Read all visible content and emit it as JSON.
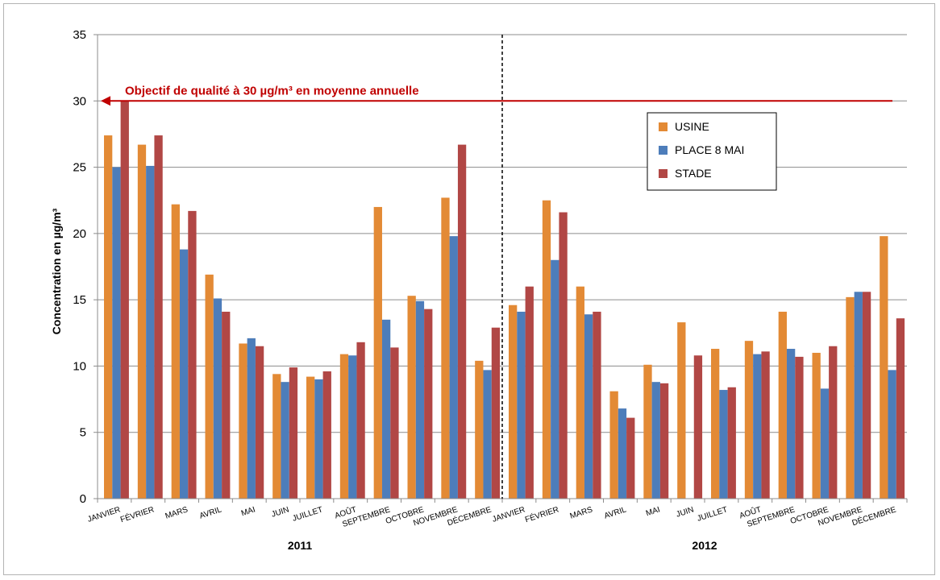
{
  "chart_data": {
    "type": "bar",
    "ylabel": "Concentration en µg/m³",
    "ylim": [
      0,
      35
    ],
    "yticks": [
      0,
      5,
      10,
      15,
      20,
      25,
      30,
      35
    ],
    "grid": true,
    "legend_position": "top-right",
    "categories": [
      "JANVIER",
      "FÉVRIER",
      "MARS",
      "AVRIL",
      "MAI",
      "JUIN",
      "JUILLET",
      "AOÛT",
      "SEPTEMBRE",
      "OCTOBRE",
      "NOVEMBRE",
      "DÉCEMBRE",
      "JANVIER",
      "FÉVRIER",
      "MARS",
      "AVRIL",
      "MAI",
      "JUIN",
      "JUILLET",
      "AOÛT",
      "SEPTEMBRE",
      "OCTOBRE",
      "NOVEMBRE",
      "DÉCEMBRE"
    ],
    "groups": [
      {
        "label": "2011",
        "start": 0,
        "end": 11
      },
      {
        "label": "2012",
        "start": 12,
        "end": 23
      }
    ],
    "series": [
      {
        "name": "USINE",
        "color": "#e38a35",
        "values": [
          27.4,
          26.7,
          22.2,
          16.9,
          11.7,
          9.4,
          9.2,
          10.9,
          22.0,
          15.3,
          22.7,
          10.4,
          14.6,
          22.5,
          16.0,
          8.1,
          10.1,
          13.3,
          11.3,
          11.9,
          14.1,
          11.0,
          15.2,
          19.8
        ]
      },
      {
        "name": "PLACE 8 MAI",
        "color": "#4d7dba",
        "values": [
          25.0,
          25.1,
          18.8,
          15.1,
          12.1,
          8.8,
          9.0,
          10.8,
          13.5,
          14.9,
          19.8,
          9.7,
          14.1,
          18.0,
          13.9,
          6.8,
          8.8,
          null,
          8.2,
          10.9,
          11.3,
          8.3,
          15.6,
          9.7
        ]
      },
      {
        "name": "STADE",
        "color": "#b14745",
        "values": [
          30.0,
          27.4,
          21.7,
          14.1,
          11.5,
          9.9,
          9.6,
          11.8,
          11.4,
          14.3,
          26.7,
          12.9,
          16.0,
          21.6,
          14.1,
          6.1,
          8.7,
          10.8,
          8.4,
          11.1,
          10.7,
          11.5,
          15.6,
          13.6
        ]
      }
    ],
    "reference_line": {
      "value": 30,
      "label": "Objectif de qualité à 30 µg/m³ en moyenne annuelle",
      "color": "#c00000"
    }
  }
}
